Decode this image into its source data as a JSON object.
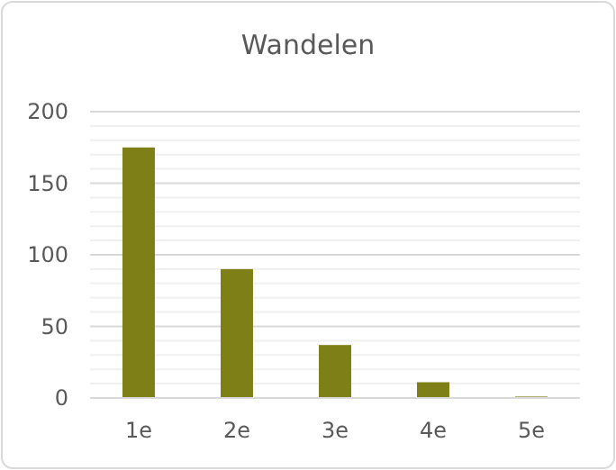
{
  "chart_data": {
    "type": "bar",
    "title": "Wandelen",
    "categories": [
      "1e",
      "2e",
      "3e",
      "4e",
      "5e"
    ],
    "values": [
      175,
      90,
      37,
      11,
      1
    ],
    "color": "#7f7f17",
    "ylim": [
      0,
      200
    ],
    "yticks": [
      0,
      {
        "value": 10,
        "label": null
      },
      {
        "value": 20,
        "label": null
      },
      {
        "value": 30,
        "label": null
      },
      {
        "value": 40,
        "label": null
      },
      50,
      {
        "value": 60,
        "label": null
      },
      {
        "value": 70,
        "label": null
      },
      {
        "value": 80,
        "label": null
      },
      {
        "value": 90,
        "label": null
      },
      100,
      {
        "value": 110,
        "label": null
      },
      {
        "value": 120,
        "label": null
      },
      {
        "value": 130,
        "label": null
      },
      {
        "value": 140,
        "label": null
      },
      150,
      {
        "value": 160,
        "label": null
      },
      {
        "value": 170,
        "label": null
      },
      {
        "value": 180,
        "label": null
      },
      {
        "value": 190,
        "label": null
      },
      200
    ],
    "grid": true
  }
}
